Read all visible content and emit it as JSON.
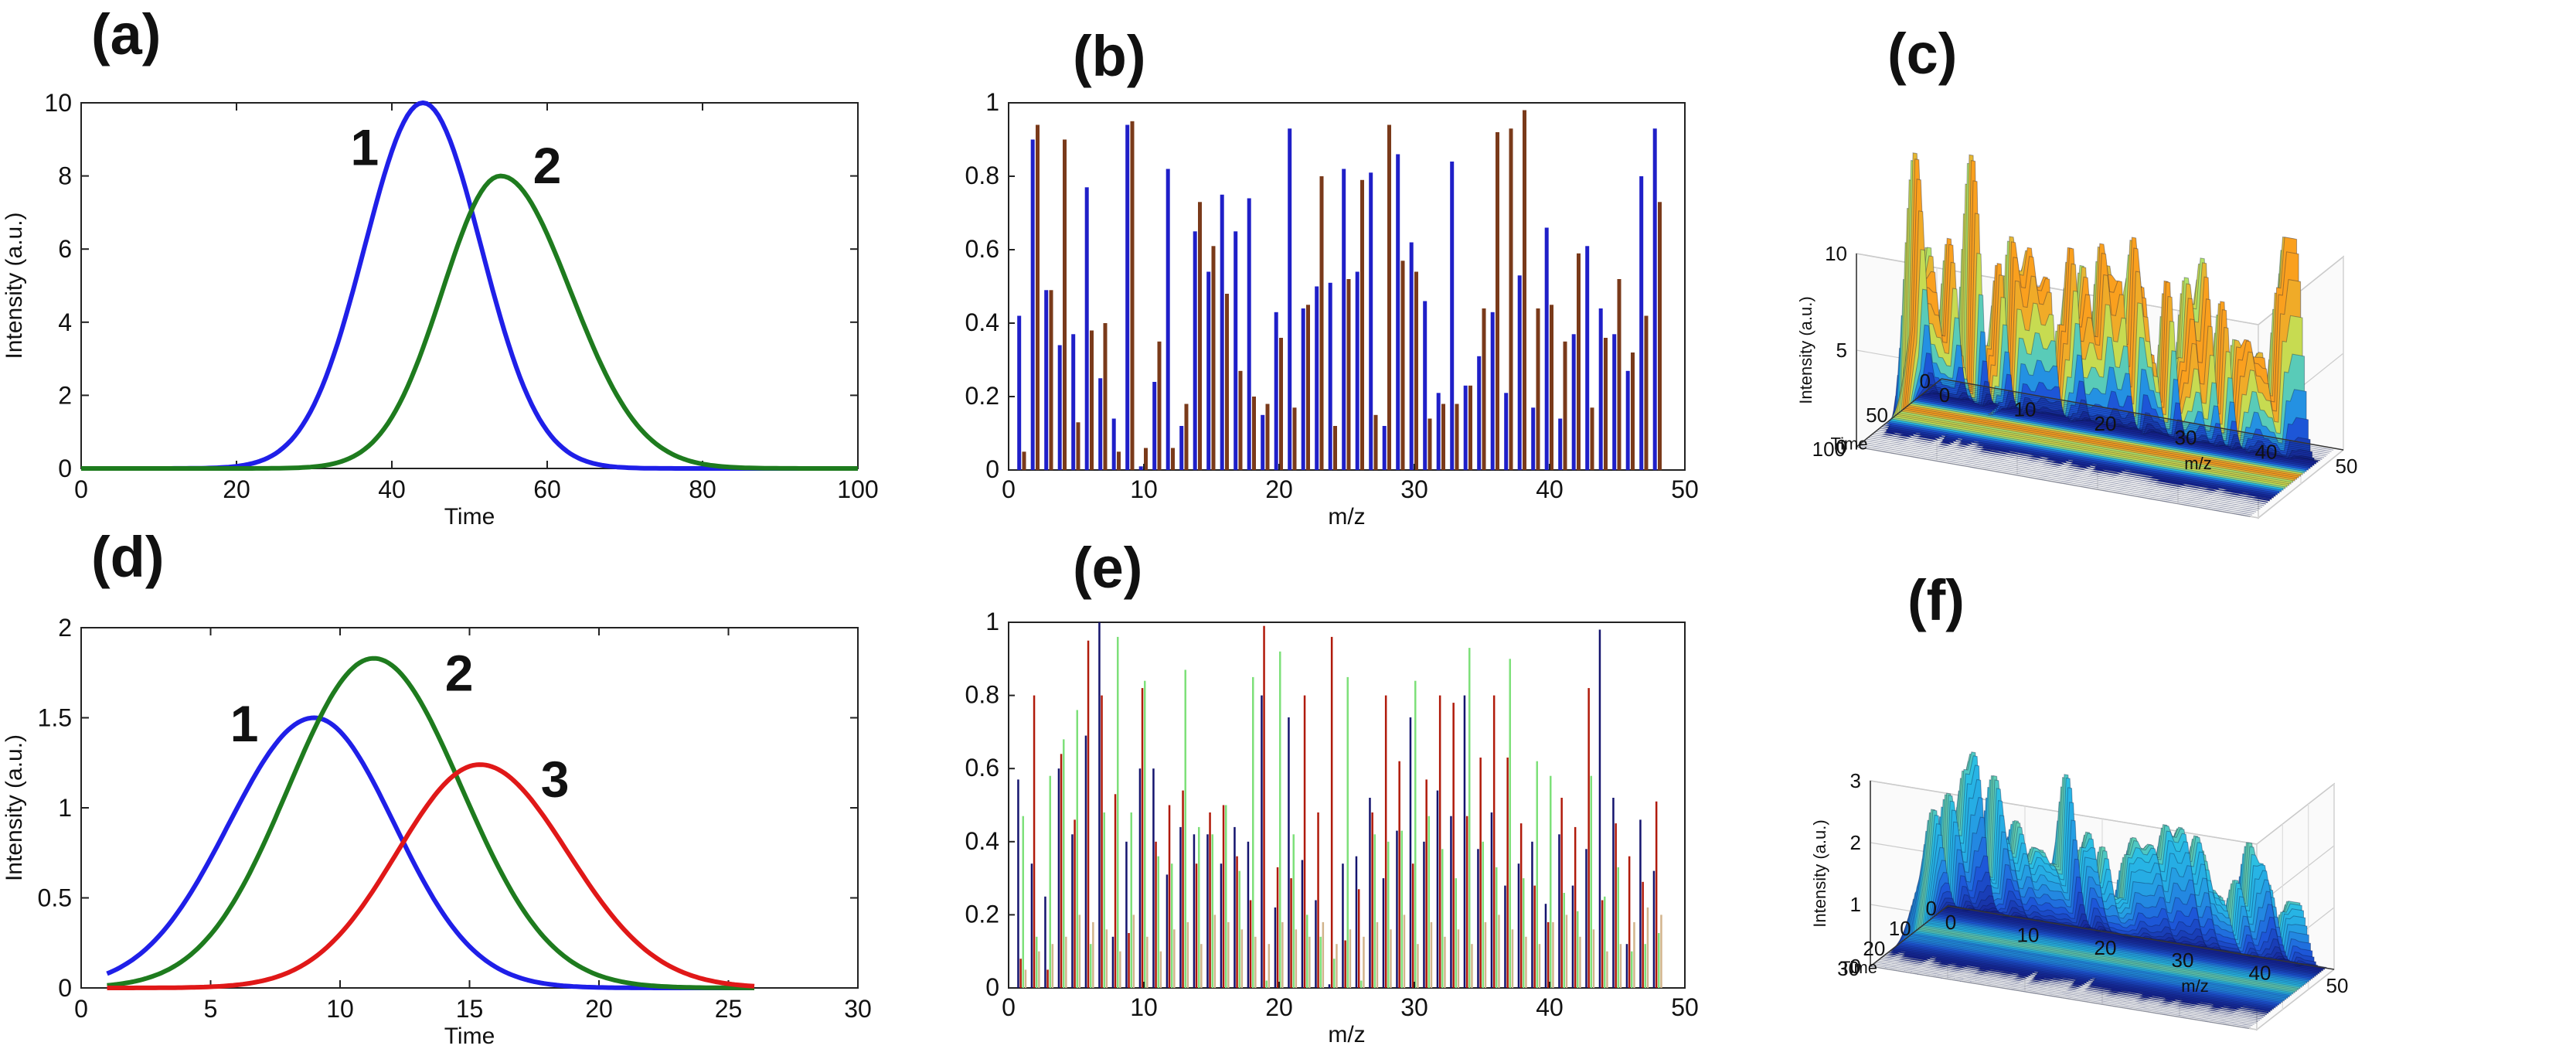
{
  "chart_data": [
    {
      "id": "a",
      "panel_label": "(a)",
      "type": "line",
      "xlabel": "Time",
      "ylabel": "Intensity (a.u.)",
      "xlim": [
        0,
        100
      ],
      "ylim": [
        0,
        10
      ],
      "xticks": [
        0,
        20,
        40,
        60,
        80,
        100
      ],
      "yticks": [
        0,
        2,
        4,
        6,
        8,
        10
      ],
      "series": [
        {
          "label": "1",
          "color": "#1f1fe8",
          "peak_x": 44,
          "peak_y": 10,
          "sigma_left": 7.5,
          "sigma_right": 7.5
        },
        {
          "label": "2",
          "color": "#1e7b1e",
          "peak_x": 54,
          "peak_y": 8,
          "sigma_left": 7.5,
          "sigma_right": 9
        }
      ],
      "annotations": [
        {
          "text": "1",
          "x": 36.5,
          "y": 8.3
        },
        {
          "text": "2",
          "x": 60,
          "y": 7.8
        }
      ]
    },
    {
      "id": "b",
      "panel_label": "(b)",
      "type": "bar",
      "xlabel": "m/z",
      "ylabel": "",
      "xlim": [
        0,
        50
      ],
      "ylim": [
        0,
        1
      ],
      "xticks": [
        0,
        10,
        20,
        30,
        40,
        50
      ],
      "yticks": [
        0,
        0.2,
        0.4,
        0.6,
        0.8,
        1
      ],
      "categories": [
        1,
        2,
        3,
        4,
        5,
        6,
        7,
        8,
        9,
        10,
        11,
        12,
        13,
        14,
        15,
        16,
        17,
        18,
        19,
        20,
        21,
        22,
        23,
        24,
        25,
        26,
        27,
        28,
        29,
        30,
        31,
        32,
        33,
        34,
        35,
        36,
        37,
        38,
        39,
        40,
        41,
        42,
        43,
        44,
        45,
        46,
        47,
        48
      ],
      "series": [
        {
          "color": "#1f1fc8",
          "values": [
            0.42,
            0.9,
            0.49,
            0.34,
            0.37,
            0.77,
            0.25,
            0.14,
            0.94,
            0.01,
            0.24,
            0.82,
            0.12,
            0.65,
            0.54,
            0.75,
            0.65,
            0.74,
            0.15,
            0.43,
            0.93,
            0.44,
            0.5,
            0.51,
            0.82,
            0.54,
            0.81,
            0.12,
            0.86,
            0.62,
            0.46,
            0.21,
            0.84,
            0.23,
            0.31,
            0.43,
            0.21,
            0.53,
            0.17,
            0.66,
            0.14,
            0.37,
            0.61,
            0.44,
            0.37,
            0.27,
            0.8,
            0.93
          ]
        },
        {
          "color": "#7a3a1a",
          "values": [
            0.05,
            0.94,
            0.49,
            0.9,
            0.13,
            0.38,
            0.4,
            0.05,
            0.95,
            0.06,
            0.35,
            0.06,
            0.18,
            0.73,
            0.61,
            0.48,
            0.27,
            0.2,
            0.18,
            0.36,
            0.17,
            0.45,
            0.8,
            0.12,
            0.52,
            0.79,
            0.15,
            0.94,
            0.57,
            0.54,
            0.14,
            0.18,
            0.18,
            0.23,
            0.44,
            0.92,
            0.93,
            0.98,
            0.44,
            0.45,
            0.35,
            0.59,
            0.17,
            0.36,
            0.52,
            0.32,
            0.42,
            0.73
          ]
        }
      ]
    },
    {
      "id": "c",
      "panel_label": "(c)",
      "type": "surface",
      "xlabel": "m/z",
      "ylabel": "Time",
      "zlabel": "Intensity (a.u.)",
      "xticks": [
        0,
        10,
        20,
        30,
        40,
        50
      ],
      "yticks": [
        0,
        50,
        100
      ],
      "zticks": [
        0,
        5,
        10
      ],
      "zmax": 10,
      "mz_max": 50,
      "time_max": 100,
      "components": [
        {
          "center": 44,
          "sigma": 7.5,
          "scale": 10
        },
        {
          "center": 54,
          "sigma": 8,
          "scale": 8
        }
      ]
    },
    {
      "id": "d",
      "panel_label": "(d)",
      "type": "line",
      "xlabel": "Time",
      "ylabel": "Intensity (a.u.)",
      "xlim": [
        0,
        30
      ],
      "ylim": [
        0,
        2
      ],
      "xticks": [
        0,
        5,
        10,
        15,
        20,
        25,
        30
      ],
      "yticks": [
        0,
        0.5,
        1,
        1.5,
        2
      ],
      "series": [
        {
          "label": "1",
          "color": "#1f1fe8",
          "peak_x": 9,
          "peak_y": 1.5,
          "sigma_left": 3.3,
          "sigma_right": 3.1,
          "x_start": 1,
          "x_end": 26
        },
        {
          "label": "2",
          "color": "#1e7b1e",
          "peak_x": 11.3,
          "peak_y": 1.83,
          "sigma_left": 3.3,
          "sigma_right": 3.4,
          "x_start": 1,
          "x_end": 26
        },
        {
          "label": "3",
          "color": "#e01818",
          "peak_x": 15.4,
          "peak_y": 1.24,
          "sigma_left": 3.2,
          "sigma_right": 3.4,
          "x_start": 1,
          "x_end": 26
        }
      ],
      "annotations": [
        {
          "text": "1",
          "x": 6.3,
          "y": 1.37
        },
        {
          "text": "2",
          "x": 14.6,
          "y": 1.65
        },
        {
          "text": "3",
          "x": 18.3,
          "y": 1.06
        }
      ]
    },
    {
      "id": "e",
      "panel_label": "(e)",
      "type": "bar",
      "xlabel": "m/z",
      "ylabel": "",
      "xlim": [
        0,
        50
      ],
      "ylim": [
        0,
        1
      ],
      "xticks": [
        0,
        10,
        20,
        30,
        40,
        50
      ],
      "yticks": [
        0,
        0.2,
        0.4,
        0.6,
        0.8,
        1
      ],
      "categories": [
        1,
        2,
        3,
        4,
        5,
        6,
        7,
        8,
        9,
        10,
        11,
        12,
        13,
        14,
        15,
        16,
        17,
        18,
        19,
        20,
        21,
        22,
        23,
        24,
        25,
        26,
        27,
        28,
        29,
        30,
        31,
        32,
        33,
        34,
        35,
        36,
        37,
        38,
        39,
        40,
        41,
        42,
        43,
        44,
        45,
        46,
        47,
        48
      ],
      "series": [
        {
          "color": "#14146e",
          "values": [
            0.57,
            0.34,
            0.25,
            0.6,
            0.42,
            0.69,
            1.0,
            0.14,
            0.4,
            0.6,
            0.6,
            0.31,
            0.44,
            0.42,
            0.42,
            0.34,
            0.44,
            0.4,
            0.8,
            0.22,
            0.74,
            0.35,
            0.24,
            0.01,
            0.34,
            0.36,
            0.52,
            0.3,
            0.43,
            0.74,
            0.4,
            0.54,
            0.47,
            0.8,
            0.38,
            0.48,
            0.28,
            0.34,
            0.4,
            0.23,
            0.42,
            0.28,
            0.38,
            0.98,
            0.52,
            0.12,
            0.46,
            0.32
          ]
        },
        {
          "color": "#b01a0a",
          "values": [
            0.08,
            0.8,
            0.05,
            0.64,
            0.46,
            0.95,
            0.8,
            0.53,
            0.15,
            0.82,
            0.4,
            0.5,
            0.54,
            0.34,
            0.48,
            0.5,
            0.36,
            0.24,
            0.99,
            0.33,
            0.3,
            0.8,
            0.48,
            0.96,
            0.13,
            0.27,
            0.48,
            0.8,
            0.62,
            0.34,
            0.57,
            0.8,
            0.78,
            0.47,
            0.63,
            0.8,
            0.63,
            0.45,
            0.28,
            0.18,
            0.52,
            0.44,
            0.82,
            0.24,
            0.45,
            0.36,
            0.29,
            0.51
          ]
        },
        {
          "color": "#7ee07a",
          "values": [
            0.47,
            0.14,
            0.58,
            0.68,
            0.76,
            0.12,
            0.48,
            0.96,
            0.48,
            0.84,
            0.36,
            0.34,
            0.87,
            0.44,
            0.42,
            0.5,
            0.32,
            0.85,
            0.02,
            0.92,
            0.42,
            0.2,
            0.14,
            0.08,
            0.85,
            0.02,
            0.42,
            0.4,
            0.43,
            0.84,
            0.47,
            0.38,
            0.3,
            0.93,
            0.4,
            0.33,
            0.9,
            0.3,
            0.62,
            0.58,
            0.26,
            0.21,
            0.58,
            0.25,
            0.33,
            0.1,
            0.12,
            0.15
          ]
        },
        {
          "color": "#d2b48c",
          "values": [
            0.05,
            0.1,
            0.12,
            0.14,
            0.2,
            0.18,
            0.16,
            0.1,
            0.2,
            0.14,
            0.1,
            0.16,
            0.18,
            0.12,
            0.2,
            0.18,
            0.16,
            0.14,
            0.12,
            0.18,
            0.16,
            0.14,
            0.18,
            0.12,
            0.16,
            0.14,
            0.18,
            0.16,
            0.2,
            0.12,
            0.18,
            0.14,
            0.16,
            0.12,
            0.18,
            0.2,
            0.16,
            0.14,
            0.12,
            0.18,
            0.2,
            0.14,
            0.16,
            0.1,
            0.12,
            0.18,
            0.22,
            0.2
          ]
        }
      ]
    },
    {
      "id": "f",
      "panel_label": "(f)",
      "type": "surface",
      "xlabel": "m/z",
      "ylabel": "Time",
      "zlabel": "Intensity (a.u.)",
      "xticks": [
        0,
        10,
        20,
        30,
        40,
        50
      ],
      "yticks": [
        0,
        10,
        20,
        30
      ],
      "zticks": [
        0,
        1,
        2,
        3
      ],
      "zmax": 3,
      "mz_max": 50,
      "time_max": 30,
      "components": [
        {
          "center": 9,
          "sigma": 3.2,
          "scale": 1.5
        },
        {
          "center": 11.3,
          "sigma": 3.3,
          "scale": 1.83
        },
        {
          "center": 15.4,
          "sigma": 3.3,
          "scale": 1.24
        }
      ]
    }
  ]
}
